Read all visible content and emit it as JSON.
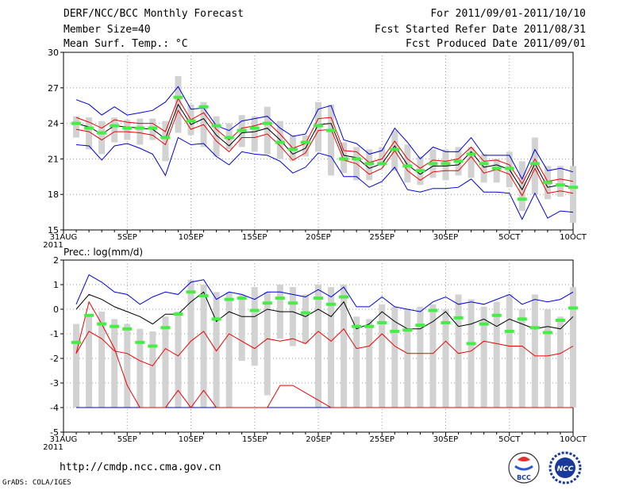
{
  "header": {
    "title": "DERF/NCC/BCC Monthly Forecast",
    "member_size": "Member Size=40",
    "variable": "Mean Surf. Temp.: °C",
    "period": "For 2011/09/01-2011/10/10",
    "started": "Fcst Started Refer Date 2011/08/31",
    "produced": "Fcst Produced Date 2011/09/01"
  },
  "footer": {
    "url": "http://cmdp.ncc.cma.gov.cn",
    "grads": "GrADS: COLA/IGES",
    "logo_bcc": "BCC",
    "logo_ncc": "NCC"
  },
  "colors": {
    "box": "#d2d2d2",
    "median": "#44ee44",
    "mean": "#000000",
    "spread": "#ee0000",
    "extreme": "#0000dd",
    "grid": "#999999"
  },
  "x_labels": [
    {
      "day": 0,
      "label": "31AUG"
    },
    {
      "day": 5,
      "label": "5SEP"
    },
    {
      "day": 10,
      "label": "10SEP"
    },
    {
      "day": 15,
      "label": "15SEP"
    },
    {
      "day": 20,
      "label": "20SEP"
    },
    {
      "day": 25,
      "label": "25SEP"
    },
    {
      "day": 30,
      "label": "30SEP"
    },
    {
      "day": 35,
      "label": "5OCT"
    },
    {
      "day": 40,
      "label": "10OCT"
    }
  ],
  "x_year": "2011",
  "chart_data": [
    {
      "type": "line",
      "title": "Mean Surf. Temp.: °C",
      "x_start_day": 1,
      "ylim": [
        15,
        30
      ],
      "yticks": [
        15,
        18,
        21,
        24,
        27,
        30
      ],
      "series": [
        {
          "name": "box_high",
          "values": [
            24.6,
            24.5,
            24.2,
            24.5,
            24.3,
            24.4,
            24.4,
            24.2,
            28.0,
            25.6,
            25.8,
            24.6,
            24.0,
            24.7,
            24.6,
            25.4,
            24.2,
            23.0,
            23.0,
            25.8,
            25.6,
            22.4,
            22.0,
            21.8,
            22.0,
            23.4,
            22.2,
            21.2,
            21.8,
            21.8,
            22.0,
            22.0,
            21.4,
            21.0,
            21.6,
            20.8,
            22.8,
            20.4,
            20.4,
            20.4
          ]
        },
        {
          "name": "box_low",
          "values": [
            22.8,
            21.8,
            21.4,
            22.4,
            22.6,
            22.2,
            22.6,
            20.8,
            23.2,
            23.0,
            22.0,
            21.2,
            21.8,
            22.0,
            21.6,
            21.4,
            21.0,
            20.8,
            21.2,
            21.6,
            19.6,
            19.8,
            19.2,
            19.2,
            20.4,
            20.0,
            19.0,
            18.8,
            19.4,
            19.2,
            19.6,
            19.4,
            19.0,
            19.0,
            18.6,
            16.6,
            18.0,
            17.6,
            17.8,
            15.6
          ]
        },
        {
          "name": "median",
          "values": [
            24.0,
            23.6,
            23.2,
            23.8,
            23.6,
            23.6,
            23.6,
            22.8,
            26.2,
            24.2,
            25.4,
            23.8,
            22.8,
            23.4,
            23.6,
            24.0,
            22.4,
            21.8,
            22.4,
            23.8,
            23.4,
            21.0,
            21.0,
            20.6,
            20.6,
            21.8,
            20.4,
            20.0,
            20.6,
            20.6,
            20.8,
            21.4,
            20.6,
            20.2,
            20.2,
            17.6,
            20.6,
            19.0,
            18.8,
            18.6
          ]
        },
        {
          "name": "mean",
          "values": [
            24.0,
            23.7,
            23.1,
            23.8,
            23.7,
            23.6,
            23.5,
            22.7,
            25.6,
            23.9,
            24.4,
            23.0,
            22.1,
            23.2,
            23.3,
            23.6,
            22.6,
            21.4,
            21.9,
            23.9,
            24.0,
            21.3,
            21.1,
            20.2,
            20.6,
            22.1,
            20.5,
            19.7,
            20.4,
            20.4,
            20.5,
            21.6,
            20.3,
            20.5,
            20.1,
            18.4,
            20.6,
            18.6,
            18.8,
            18.6
          ]
        },
        {
          "name": "spread_high",
          "values": [
            24.5,
            24.1,
            23.6,
            24.3,
            24.1,
            24.0,
            24.0,
            23.3,
            26.1,
            24.3,
            24.9,
            23.5,
            22.6,
            23.6,
            23.8,
            24.1,
            23.1,
            21.9,
            22.3,
            24.4,
            24.5,
            21.7,
            21.6,
            20.7,
            21.0,
            22.5,
            21.0,
            20.2,
            20.9,
            20.8,
            21.0,
            22.0,
            20.8,
            20.9,
            20.5,
            18.9,
            21.0,
            19.1,
            19.3,
            19.1
          ]
        },
        {
          "name": "spread_low",
          "values": [
            23.5,
            23.3,
            22.6,
            23.3,
            23.3,
            23.2,
            23.0,
            22.2,
            25.1,
            23.5,
            23.9,
            22.5,
            21.6,
            22.8,
            22.8,
            23.1,
            22.1,
            20.9,
            21.5,
            23.4,
            23.5,
            20.9,
            20.6,
            19.7,
            20.2,
            21.7,
            20.0,
            19.2,
            19.9,
            20.0,
            20.0,
            21.2,
            19.8,
            20.1,
            19.7,
            17.9,
            20.2,
            18.1,
            18.3,
            18.1
          ]
        },
        {
          "name": "extreme_high",
          "values": [
            26.0,
            25.6,
            24.7,
            25.4,
            24.7,
            24.9,
            25.1,
            25.8,
            27.1,
            25.2,
            25.3,
            23.8,
            23.4,
            24.2,
            24.4,
            24.6,
            23.6,
            22.9,
            23.1,
            25.2,
            25.5,
            22.6,
            22.3,
            21.4,
            21.7,
            23.6,
            22.4,
            21.0,
            22.0,
            21.6,
            21.6,
            22.8,
            21.3,
            21.3,
            21.3,
            19.3,
            21.8,
            20.0,
            20.2,
            19.9
          ]
        },
        {
          "name": "extreme_low",
          "values": [
            22.2,
            22.1,
            20.9,
            22.1,
            22.3,
            21.9,
            21.4,
            19.6,
            22.8,
            22.2,
            22.3,
            21.2,
            20.5,
            21.6,
            21.4,
            21.3,
            20.8,
            19.8,
            20.3,
            21.5,
            21.2,
            19.5,
            19.5,
            18.6,
            19.1,
            20.3,
            18.4,
            18.2,
            18.5,
            18.5,
            18.6,
            19.3,
            18.2,
            18.2,
            18.1,
            15.9,
            18.1,
            16.0,
            16.6,
            16.5
          ]
        }
      ]
    },
    {
      "type": "line",
      "title": "Prec.: log(mm/d)",
      "x_start_day": 1,
      "ylim": [
        -5,
        2
      ],
      "yticks": [
        -5,
        -4,
        -3,
        -2,
        -1,
        0,
        1,
        2
      ],
      "series": [
        {
          "name": "box_high",
          "values": [
            -0.6,
            -0.2,
            -0.1,
            -0.4,
            -0.6,
            -0.8,
            -0.9,
            -0.3,
            -0.1,
            1.2,
            1.0,
            0.7,
            0.7,
            0.6,
            0.9,
            0.7,
            1.0,
            0.9,
            0.6,
            1.0,
            0.9,
            1.0,
            -0.3,
            -0.4,
            0.2,
            0.1,
            0.0,
            0.1,
            0.2,
            0.0,
            0.6,
            0.4,
            0.1,
            0.3,
            0.6,
            0.0,
            0.6,
            0.0,
            -0.3,
            0.9
          ]
        },
        {
          "name": "box_low",
          "values": [
            -4.0,
            -4.0,
            -4.0,
            -4.0,
            -4.0,
            -4.0,
            -4.0,
            -4.0,
            -4.0,
            -4.0,
            -4.0,
            -4.0,
            -4.0,
            -2.1,
            -2.3,
            -3.5,
            -1.2,
            -1.5,
            -1.4,
            -4.0,
            -4.0,
            -4.0,
            -4.0,
            -4.0,
            -4.0,
            -4.0,
            -4.0,
            -4.0,
            -4.0,
            -4.0,
            -4.0,
            -4.0,
            -4.0,
            -4.0,
            -4.0,
            -4.0,
            -4.0,
            -4.0,
            -4.0,
            -4.0
          ]
        },
        {
          "name": "median",
          "values": [
            -1.35,
            -0.25,
            -0.6,
            -0.7,
            -0.8,
            -1.35,
            -1.5,
            -0.75,
            -0.2,
            0.7,
            0.55,
            -0.4,
            0.4,
            0.45,
            -0.05,
            0.25,
            0.45,
            0.25,
            -0.15,
            0.45,
            0.2,
            0.5,
            -0.7,
            -0.7,
            -0.55,
            -0.9,
            -0.85,
            -0.65,
            -0.05,
            -0.55,
            -0.35,
            -1.4,
            -0.6,
            -0.25,
            -0.9,
            -0.4,
            -0.75,
            -0.95,
            -0.45,
            0.05
          ]
        },
        {
          "name": "mean",
          "values": [
            0.0,
            0.6,
            0.4,
            0.1,
            -0.1,
            -0.3,
            -0.6,
            -0.2,
            -0.2,
            0.3,
            0.7,
            -0.5,
            -0.1,
            -0.3,
            -0.3,
            0.0,
            -0.1,
            -0.1,
            -0.3,
            0.0,
            -0.3,
            0.3,
            -0.8,
            -0.6,
            -0.1,
            -0.5,
            -0.8,
            -0.8,
            -0.5,
            -0.1,
            -0.7,
            -0.6,
            -0.4,
            -0.7,
            -0.4,
            -0.6,
            -0.8,
            -0.7,
            -0.8,
            -0.3
          ]
        },
        {
          "name": "spread_high",
          "values": [
            -1.8,
            0.3,
            -0.6,
            -1.6,
            -3.1,
            -4.0,
            -4.0,
            -4.0,
            -3.3,
            -4.0,
            -3.3,
            -4.0,
            -4.0,
            -4.0,
            -4.0,
            -4.0,
            -3.1,
            -3.1,
            -3.4,
            -3.7,
            -4.0,
            -4.0,
            -4.0,
            -4.0,
            -4.0,
            -4.0,
            -4.0,
            -4.0,
            -4.0,
            -4.0,
            -4.0,
            -4.0,
            -4.0,
            -4.0,
            -4.0,
            -4.0,
            -4.0,
            -4.0,
            -4.0,
            -4.0
          ]
        },
        {
          "name": "spread_low",
          "values": [
            -1.8,
            -0.9,
            -1.2,
            -1.7,
            -1.8,
            -2.1,
            -2.3,
            -1.6,
            -1.9,
            -1.3,
            -0.9,
            -1.7,
            -1.0,
            -1.3,
            -1.6,
            -1.2,
            -1.3,
            -1.2,
            -1.4,
            -0.9,
            -1.3,
            -0.8,
            -1.6,
            -1.5,
            -1.0,
            -1.5,
            -1.8,
            -1.8,
            -1.8,
            -1.3,
            -1.8,
            -1.7,
            -1.3,
            -1.4,
            -1.5,
            -1.5,
            -1.9,
            -1.9,
            -1.8,
            -1.5
          ]
        },
        {
          "name": "extreme_high",
          "values": [
            0.2,
            1.4,
            1.1,
            0.7,
            0.6,
            0.2,
            0.5,
            0.7,
            0.6,
            1.1,
            1.2,
            0.4,
            0.7,
            0.6,
            0.4,
            0.7,
            0.7,
            0.6,
            0.5,
            0.8,
            0.5,
            0.9,
            0.1,
            0.1,
            0.5,
            0.1,
            0.0,
            -0.1,
            0.3,
            0.5,
            0.2,
            0.3,
            0.2,
            0.4,
            0.6,
            0.2,
            0.4,
            0.3,
            0.4,
            0.7
          ]
        },
        {
          "name": "extreme_low",
          "values": [
            -4.0,
            -4.0,
            -4.0,
            -4.0,
            -4.0,
            -4.0,
            -4.0,
            -4.0,
            -4.0,
            -4.0,
            -4.0,
            -4.0,
            -4.0,
            -4.0,
            -4.0,
            -4.0,
            -4.0,
            -4.0,
            -4.0,
            -4.0,
            -4.0,
            -4.0,
            -4.0,
            -4.0,
            -4.0,
            -4.0,
            -4.0,
            -4.0,
            -4.0,
            -4.0,
            -4.0,
            -4.0,
            -4.0,
            -4.0,
            -4.0,
            -4.0,
            -4.0,
            -4.0,
            -4.0,
            -4.0
          ]
        }
      ]
    }
  ]
}
